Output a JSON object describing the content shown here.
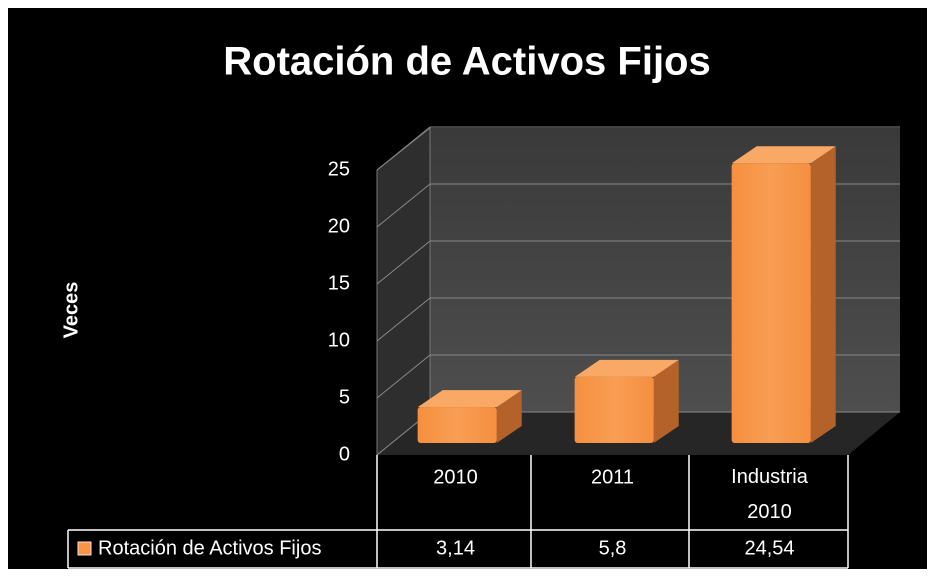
{
  "chart_data": {
    "type": "bar3d",
    "title": "Rotación de Activos Fijos",
    "y_label": "Veces",
    "categories": [
      "2010",
      "2011",
      "Industria 2010"
    ],
    "series": [
      {
        "name": "Rotación de Activos Fijos",
        "color": "#f79646",
        "values": [
          3.14,
          5.8,
          24.54
        ],
        "value_labels": [
          "3,14",
          "5,8",
          "24,54"
        ]
      }
    ],
    "ylim": [
      0,
      25
    ],
    "yticks": [
      0,
      5,
      10,
      15,
      20,
      25
    ],
    "grid": true,
    "data_table": true
  }
}
